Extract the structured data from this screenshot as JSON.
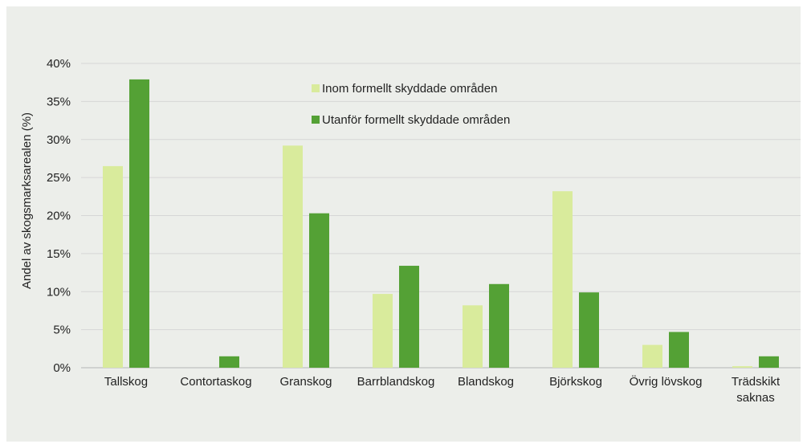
{
  "chart_data": {
    "type": "bar",
    "ylabel": "Andel av skogsmarksarealen (%)",
    "ylim": [
      0,
      40
    ],
    "yticks": [
      "0%",
      "5%",
      "10%",
      "15%",
      "20%",
      "25%",
      "30%",
      "35%",
      "40%"
    ],
    "categories": [
      [
        "Tallskog"
      ],
      [
        "Contortaskog"
      ],
      [
        "Granskog"
      ],
      [
        "Barrblandskog"
      ],
      [
        "Blandskog"
      ],
      [
        "Björkskog"
      ],
      [
        "Övrig lövskog"
      ],
      [
        "Trädskikt",
        "saknas"
      ]
    ],
    "series": [
      {
        "name": "Inom formellt skyddade områden",
        "color": "#d9eb9c",
        "values": [
          26.5,
          0,
          29.2,
          9.7,
          8.2,
          23.2,
          3.0,
          0.2
        ]
      },
      {
        "name": "Utanför formellt skyddade områden",
        "color": "#54a135",
        "values": [
          37.9,
          1.5,
          20.3,
          13.4,
          11.0,
          9.9,
          4.7,
          1.5
        ]
      }
    ],
    "grid": true,
    "legend_position": "top-center"
  }
}
